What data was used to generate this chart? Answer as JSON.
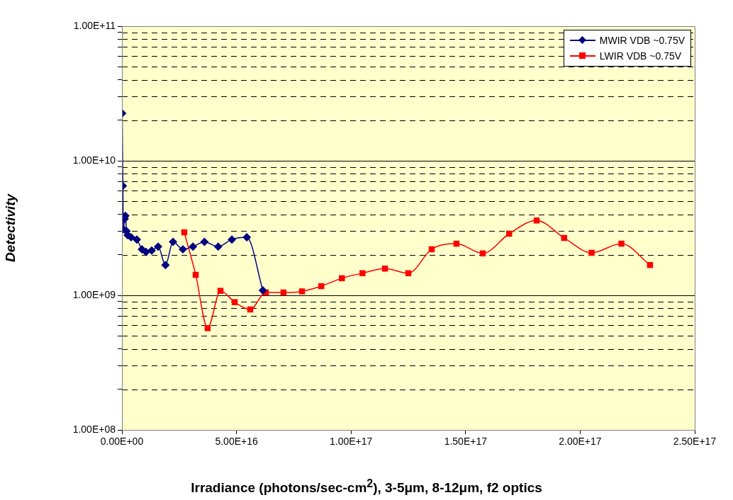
{
  "chart_data": {
    "type": "line",
    "xlabel": "Irradiance (photons/sec-cm$^{2}$), 3-5μm, 8-12μm, f2 optics",
    "ylabel": "Detectivity",
    "xlim": [
      0,
      2.5e+17
    ],
    "xticks": [
      {
        "value": 0,
        "label": "0.00E+00"
      },
      {
        "value": 5e+16,
        "label": "5.00E+16"
      },
      {
        "value": 1e+17,
        "label": "1.00E+17"
      },
      {
        "value": 1.5e+17,
        "label": "1.50E+17"
      },
      {
        "value": 2e+17,
        "label": "2.00E+17"
      },
      {
        "value": 2.5e+17,
        "label": "2.50E+17"
      }
    ],
    "ylim": [
      100000000.0,
      100000000000.0
    ],
    "yticks": [
      {
        "value": 100000000.0,
        "label": "1.00E+08"
      },
      {
        "value": 200000000.0,
        "label": null
      },
      {
        "value": 300000000.0,
        "label": null
      },
      {
        "value": 400000000.0,
        "label": null
      },
      {
        "value": 500000000.0,
        "label": null
      },
      {
        "value": 600000000.0,
        "label": null
      },
      {
        "value": 700000000.0,
        "label": null
      },
      {
        "value": 800000000.0,
        "label": null
      },
      {
        "value": 900000000.0,
        "label": null
      },
      {
        "value": 1000000000.0,
        "label": "1.00E+09"
      },
      {
        "value": 2000000000.0,
        "label": null
      },
      {
        "value": 3000000000.0,
        "label": null
      },
      {
        "value": 4000000000.0,
        "label": null
      },
      {
        "value": 5000000000.0,
        "label": null
      },
      {
        "value": 6000000000.0,
        "label": null
      },
      {
        "value": 7000000000.0,
        "label": null
      },
      {
        "value": 8000000000.0,
        "label": null
      },
      {
        "value": 9000000000.0,
        "label": null
      },
      {
        "value": 10000000000.0,
        "label": "1.00E+10"
      },
      {
        "value": 20000000000.0,
        "label": null
      },
      {
        "value": 30000000000.0,
        "label": null
      },
      {
        "value": 40000000000.0,
        "label": null
      },
      {
        "value": 50000000000.0,
        "label": null
      },
      {
        "value": 60000000000.0,
        "label": null
      },
      {
        "value": 70000000000.0,
        "label": null
      },
      {
        "value": 80000000000.0,
        "label": null
      },
      {
        "value": 90000000000.0,
        "label": null
      },
      {
        "value": 100000000000.0,
        "label": "1.00E+11"
      }
    ],
    "log": "y",
    "grid": "y",
    "legend": "top right",
    "line_style": "solid",
    "series": [
      {
        "name": "MWIR VDB ~0.75V",
        "color": "#000080",
        "marker": "diamond",
        "x": [
          100000000000000.0,
          400000000000000.0,
          600000000000000.0,
          1200000000000000.0,
          1500000000000000.0,
          2000000000000000.0,
          2500000000000000.0,
          4000000000000000.0,
          6500000000000000.0,
          8700000000000000.0,
          1.05e+16,
          1.3e+16,
          1.58e+16,
          1.9e+16,
          2.23e+16,
          2.66e+16,
          3.1e+16,
          3.6e+16,
          4.2e+16,
          4.8e+16,
          5.45e+16,
          6.15e+16
        ],
        "values": [
          22500000000.0,
          6500000000.0,
          3100000000.0,
          3700000000.0,
          3900000000.0,
          3000000000.0,
          2800000000.0,
          2700000000.0,
          2600000000.0,
          2200000000.0,
          2100000000.0,
          2150000000.0,
          2300000000.0,
          1680000000.0,
          2500000000.0,
          2200000000.0,
          2300000000.0,
          2500000000.0,
          2300000000.0,
          2600000000.0,
          2700000000.0,
          1090000000.0
        ]
      },
      {
        "name": "LWIR VDB ~0.75V",
        "color": "#ff0000",
        "marker": "square",
        "x": [
          2.72e+16,
          3.22e+16,
          3.74e+16,
          4.3e+16,
          4.92e+16,
          5.6e+16,
          6.28e+16,
          7.05e+16,
          7.86e+16,
          8.7e+16,
          9.6e+16,
          1.05e+17,
          1.148e+17,
          1.25e+17,
          1.352e+17,
          1.46e+17,
          1.575e+17,
          1.69e+17,
          1.81e+17,
          1.93e+17,
          2.05e+17,
          2.18e+17,
          2.305e+17
        ],
        "values": [
          2940000000.0,
          1420000000.0,
          570000000.0,
          1080000000.0,
          890000000.0,
          785000000.0,
          1050000000.0,
          1050000000.0,
          1070000000.0,
          1170000000.0,
          1340000000.0,
          1460000000.0,
          1580000000.0,
          1460000000.0,
          2200000000.0,
          2420000000.0,
          2050000000.0,
          2870000000.0,
          3600000000.0,
          2670000000.0,
          2070000000.0,
          2420000000.0,
          1680000000.0
        ]
      }
    ]
  }
}
